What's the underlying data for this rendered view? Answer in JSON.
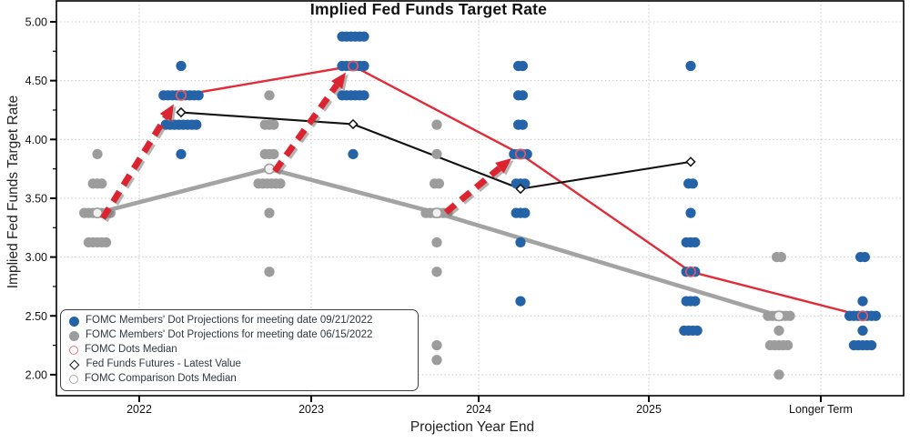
{
  "chart_data": {
    "type": "scatter",
    "title": "Implied Fed Funds Target Rate",
    "xlabel": "Projection Year End",
    "ylabel": "Implied Fed Funds Target Rate",
    "x_categories": [
      "2022",
      "2023",
      "2024",
      "2025",
      "Longer Term"
    ],
    "y_ticks": [
      "5.00",
      "4.50",
      "4.00",
      "3.50",
      "3.00",
      "2.50",
      "2.00"
    ],
    "y_minor_ticks": [
      4.75,
      4.25,
      3.75,
      3.25,
      2.75,
      2.25
    ],
    "ylim": [
      1.82,
      5.17
    ],
    "grid": true,
    "legend_position": "lower left",
    "colors": {
      "blue_dots": "#2463a8",
      "gray_dots": "#9c9c9c",
      "red_line": "#e12b38",
      "black_line": "#111111",
      "gray_line": "#a3a3a3",
      "median_ring": "#dd5a66",
      "comparison_ring": "#9e9e9e",
      "arrow_red": "#dc2430",
      "grid": "#c7c7c7"
    },
    "series": [
      {
        "name": "FOMC Members' Dot Projections for meeting date 09/21/2022",
        "type": "dots",
        "side": "right",
        "color": "#2463a8",
        "clusters": {
          "2022": [
            [
              4.625,
              1
            ],
            [
              4.375,
              9
            ],
            [
              4.125,
              8
            ],
            [
              3.875,
              1
            ]
          ],
          "2023": [
            [
              4.875,
              6
            ],
            [
              4.625,
              6
            ],
            [
              4.375,
              6
            ],
            [
              3.875,
              1
            ]
          ],
          "2024": [
            [
              4.625,
              2
            ],
            [
              4.375,
              2
            ],
            [
              4.125,
              2
            ],
            [
              3.875,
              4
            ],
            [
              3.625,
              3
            ],
            [
              3.375,
              3
            ],
            [
              3.125,
              1
            ],
            [
              2.625,
              1
            ]
          ],
          "2025": [
            [
              4.625,
              1
            ],
            [
              3.625,
              2
            ],
            [
              3.375,
              1
            ],
            [
              3.125,
              3
            ],
            [
              2.875,
              3
            ],
            [
              2.625,
              3
            ],
            [
              2.375,
              4
            ]
          ],
          "Longer Term": [
            [
              3.0,
              2
            ],
            [
              2.625,
              1
            ],
            [
              2.5,
              7
            ],
            [
              2.375,
              1
            ],
            [
              2.25,
              5
            ]
          ]
        }
      },
      {
        "name": "FOMC Members' Dot Projections for meeting date 06/15/2022",
        "type": "dots",
        "side": "left",
        "color": "#9c9c9c",
        "clusters": {
          "2022": [
            [
              3.875,
              1
            ],
            [
              3.625,
              3
            ],
            [
              3.375,
              7
            ],
            [
              3.125,
              5
            ]
          ],
          "2023": [
            [
              4.375,
              1
            ],
            [
              4.125,
              3
            ],
            [
              3.875,
              3
            ],
            [
              3.625,
              6
            ],
            [
              3.375,
              1
            ],
            [
              2.875,
              1
            ]
          ],
          "2024": [
            [
              4.125,
              1
            ],
            [
              3.875,
              1
            ],
            [
              3.625,
              2
            ],
            [
              3.375,
              6
            ],
            [
              3.125,
              1
            ],
            [
              2.875,
              1
            ],
            [
              2.25,
              1
            ],
            [
              2.125,
              1
            ]
          ],
          "Longer Term": [
            [
              3.0,
              2
            ],
            [
              2.5,
              6
            ],
            [
              2.375,
              1
            ],
            [
              2.25,
              5
            ],
            [
              2.0,
              1
            ]
          ]
        }
      },
      {
        "name": "FOMC Dots Median",
        "type": "line",
        "side": "right",
        "color": "#e12b38",
        "width": 2.4,
        "marker": "open-circle",
        "marker_color": "#dd5a66",
        "points": [
          [
            "2022",
            4.375
          ],
          [
            "2023",
            4.625
          ],
          [
            "2024",
            3.875
          ],
          [
            "2025",
            2.875
          ],
          [
            "Longer Term",
            2.5
          ]
        ]
      },
      {
        "name": "Fed Funds Futures - Latest Value",
        "type": "line",
        "side": "right",
        "color": "#111111",
        "width": 2.1,
        "marker": "open-diamond",
        "marker_color": "#111111",
        "points": [
          [
            "2022",
            4.23
          ],
          [
            "2023",
            4.13
          ],
          [
            "2024",
            3.58
          ],
          [
            "2025",
            3.81
          ]
        ]
      },
      {
        "name": "FOMC Comparison Dots Median",
        "type": "line",
        "side": "left",
        "color": "#a3a3a3",
        "width": 4.6,
        "marker": "open-circle",
        "marker_color": "#9e9e9e",
        "points": [
          [
            "2022",
            3.375
          ],
          [
            "2023",
            3.75
          ],
          [
            "2024",
            3.375
          ],
          [
            "Longer Term",
            2.5
          ]
        ]
      }
    ],
    "annotations": {
      "arrows": [
        {
          "from": [
            "2022",
            "left",
            3.33,
            6
          ],
          "to": [
            "2022",
            "right",
            4.3,
            -8
          ]
        },
        {
          "from": [
            "2023",
            "left",
            3.73,
            6
          ],
          "to": [
            "2023",
            "right",
            4.57,
            -8
          ]
        },
        {
          "from": [
            "2024",
            "left",
            3.38,
            10
          ],
          "to": [
            "2024",
            "right",
            3.84,
            -10
          ]
        }
      ]
    }
  },
  "legend": {
    "items": [
      {
        "label": "FOMC Members' Dot Projections for meeting date 09/21/2022",
        "marker": "filled-circle",
        "color": "#2463a8"
      },
      {
        "label": "FOMC Members' Dot Projections for meeting date 06/15/2022",
        "marker": "filled-circle",
        "color": "#9c9c9c"
      },
      {
        "label": "FOMC Dots Median",
        "marker": "open-circle",
        "color": "#e4737e"
      },
      {
        "label": "Fed Funds Futures - Latest Value",
        "marker": "open-diamond",
        "color": "#111111"
      },
      {
        "label": "FOMC Comparison Dots Median",
        "marker": "open-circle",
        "color": "#a8a8a8"
      }
    ]
  }
}
